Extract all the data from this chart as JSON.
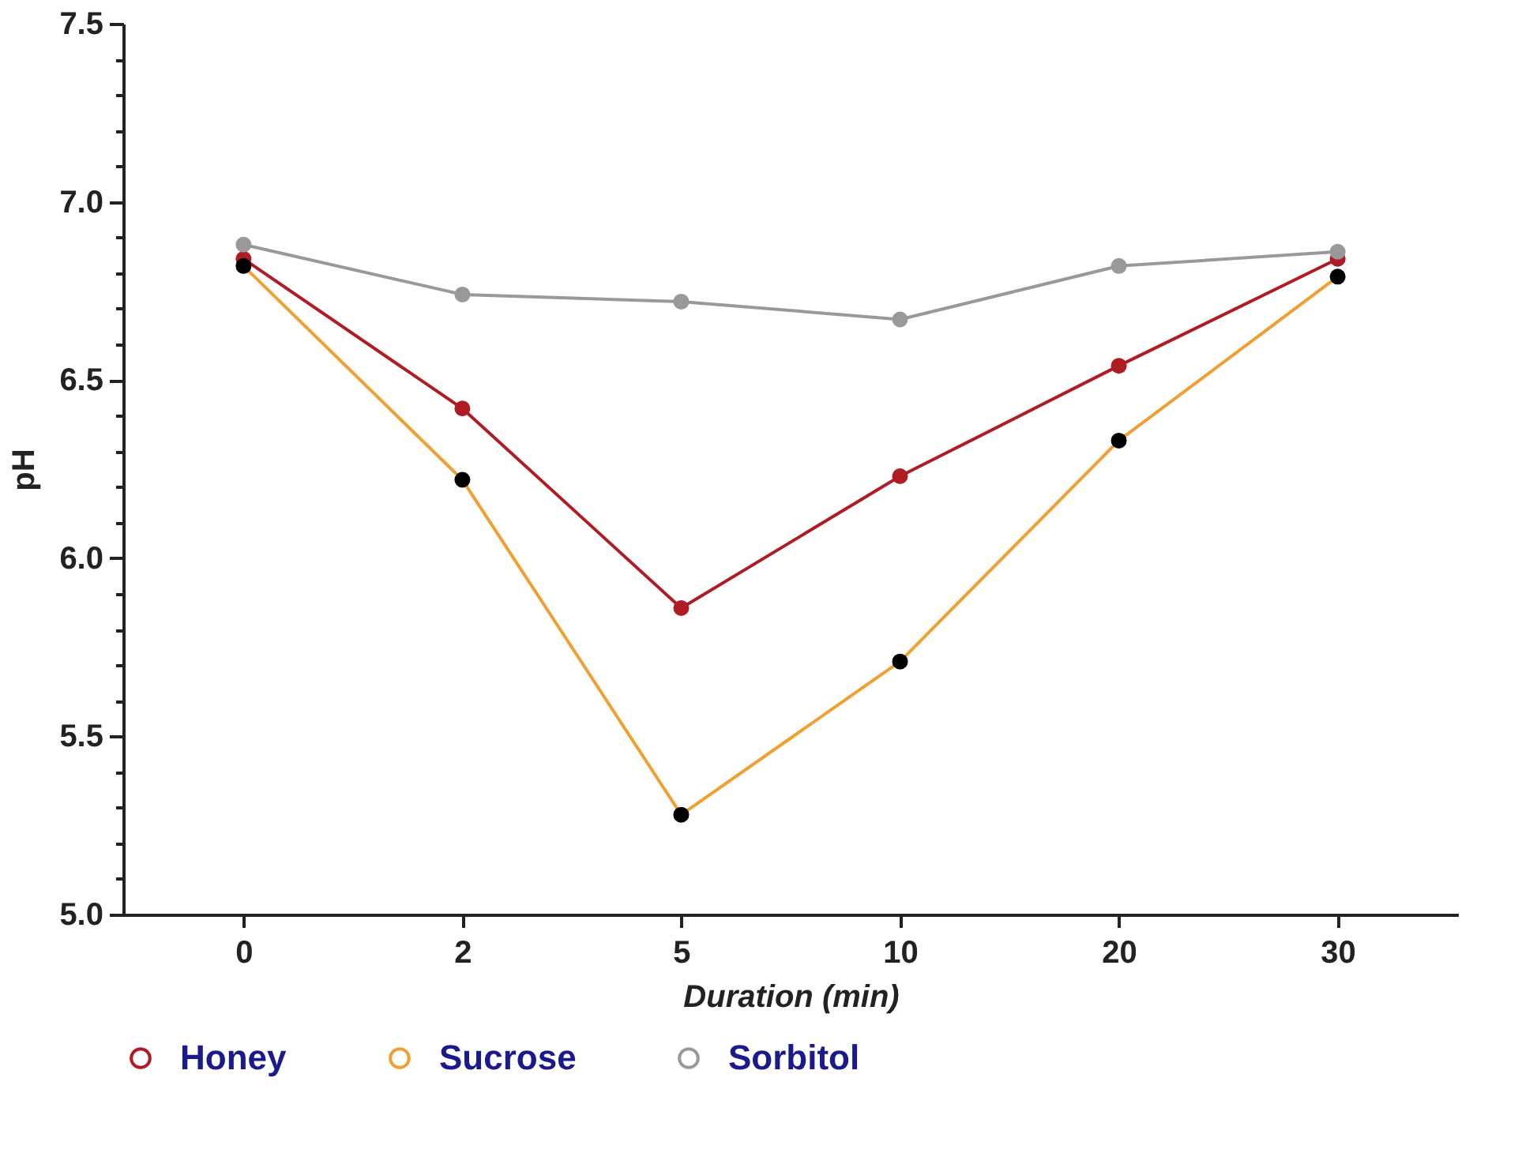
{
  "chart_data": {
    "type": "line",
    "xlabel": "Duration (min)",
    "ylabel": "pH",
    "categories": [
      "0",
      "2",
      "5",
      "10",
      "20",
      "30"
    ],
    "series": [
      {
        "name": "Honey",
        "color": "#b01c24",
        "values": [
          6.84,
          6.42,
          5.86,
          6.23,
          6.54,
          6.84
        ]
      },
      {
        "name": "Sucrose",
        "color": "#f0a030",
        "colors": [
          "#000000",
          "#000000",
          "#000000",
          "#000000",
          "#000000",
          "#000000"
        ],
        "values": [
          6.82,
          6.22,
          5.28,
          5.71,
          6.33,
          6.79
        ]
      },
      {
        "name": "Sorbitol",
        "color": "#999999",
        "values": [
          6.88,
          6.74,
          6.72,
          6.67,
          6.82,
          6.86
        ]
      }
    ],
    "ylim": [
      5,
      7.5
    ],
    "yticks": [
      {
        "value": 5,
        "label": "5.0"
      },
      {
        "value": 5.1,
        "label": null
      },
      {
        "value": 5.2,
        "label": null
      },
      {
        "value": 5.3,
        "label": null
      },
      {
        "value": 5.4,
        "label": null
      },
      5.5,
      {
        "value": 5.6,
        "label": null
      },
      {
        "value": 5.7,
        "label": null
      },
      {
        "value": 5.8,
        "label": null
      },
      {
        "value": 5.9,
        "label": null
      },
      {
        "value": 6,
        "label": "6.0"
      },
      {
        "value": 6.1,
        "label": null
      },
      {
        "value": 6.2,
        "label": null
      },
      {
        "value": 6.3,
        "label": null
      },
      {
        "value": 6.4,
        "label": null
      },
      6.5,
      {
        "value": 6.6,
        "label": null
      },
      {
        "value": 6.7,
        "label": null
      },
      {
        "value": 6.8,
        "label": null
      },
      {
        "value": 6.9,
        "label": null
      },
      {
        "value": 7,
        "label": "7.0"
      },
      {
        "value": 7.1,
        "label": null
      },
      {
        "value": 7.2,
        "label": null
      },
      {
        "value": 7.3,
        "label": null
      },
      {
        "value": 7.4,
        "label": null
      },
      7.5
    ],
    "grid": false,
    "legend": "bottom",
    "marker": "circle",
    "line_style": "solid"
  }
}
